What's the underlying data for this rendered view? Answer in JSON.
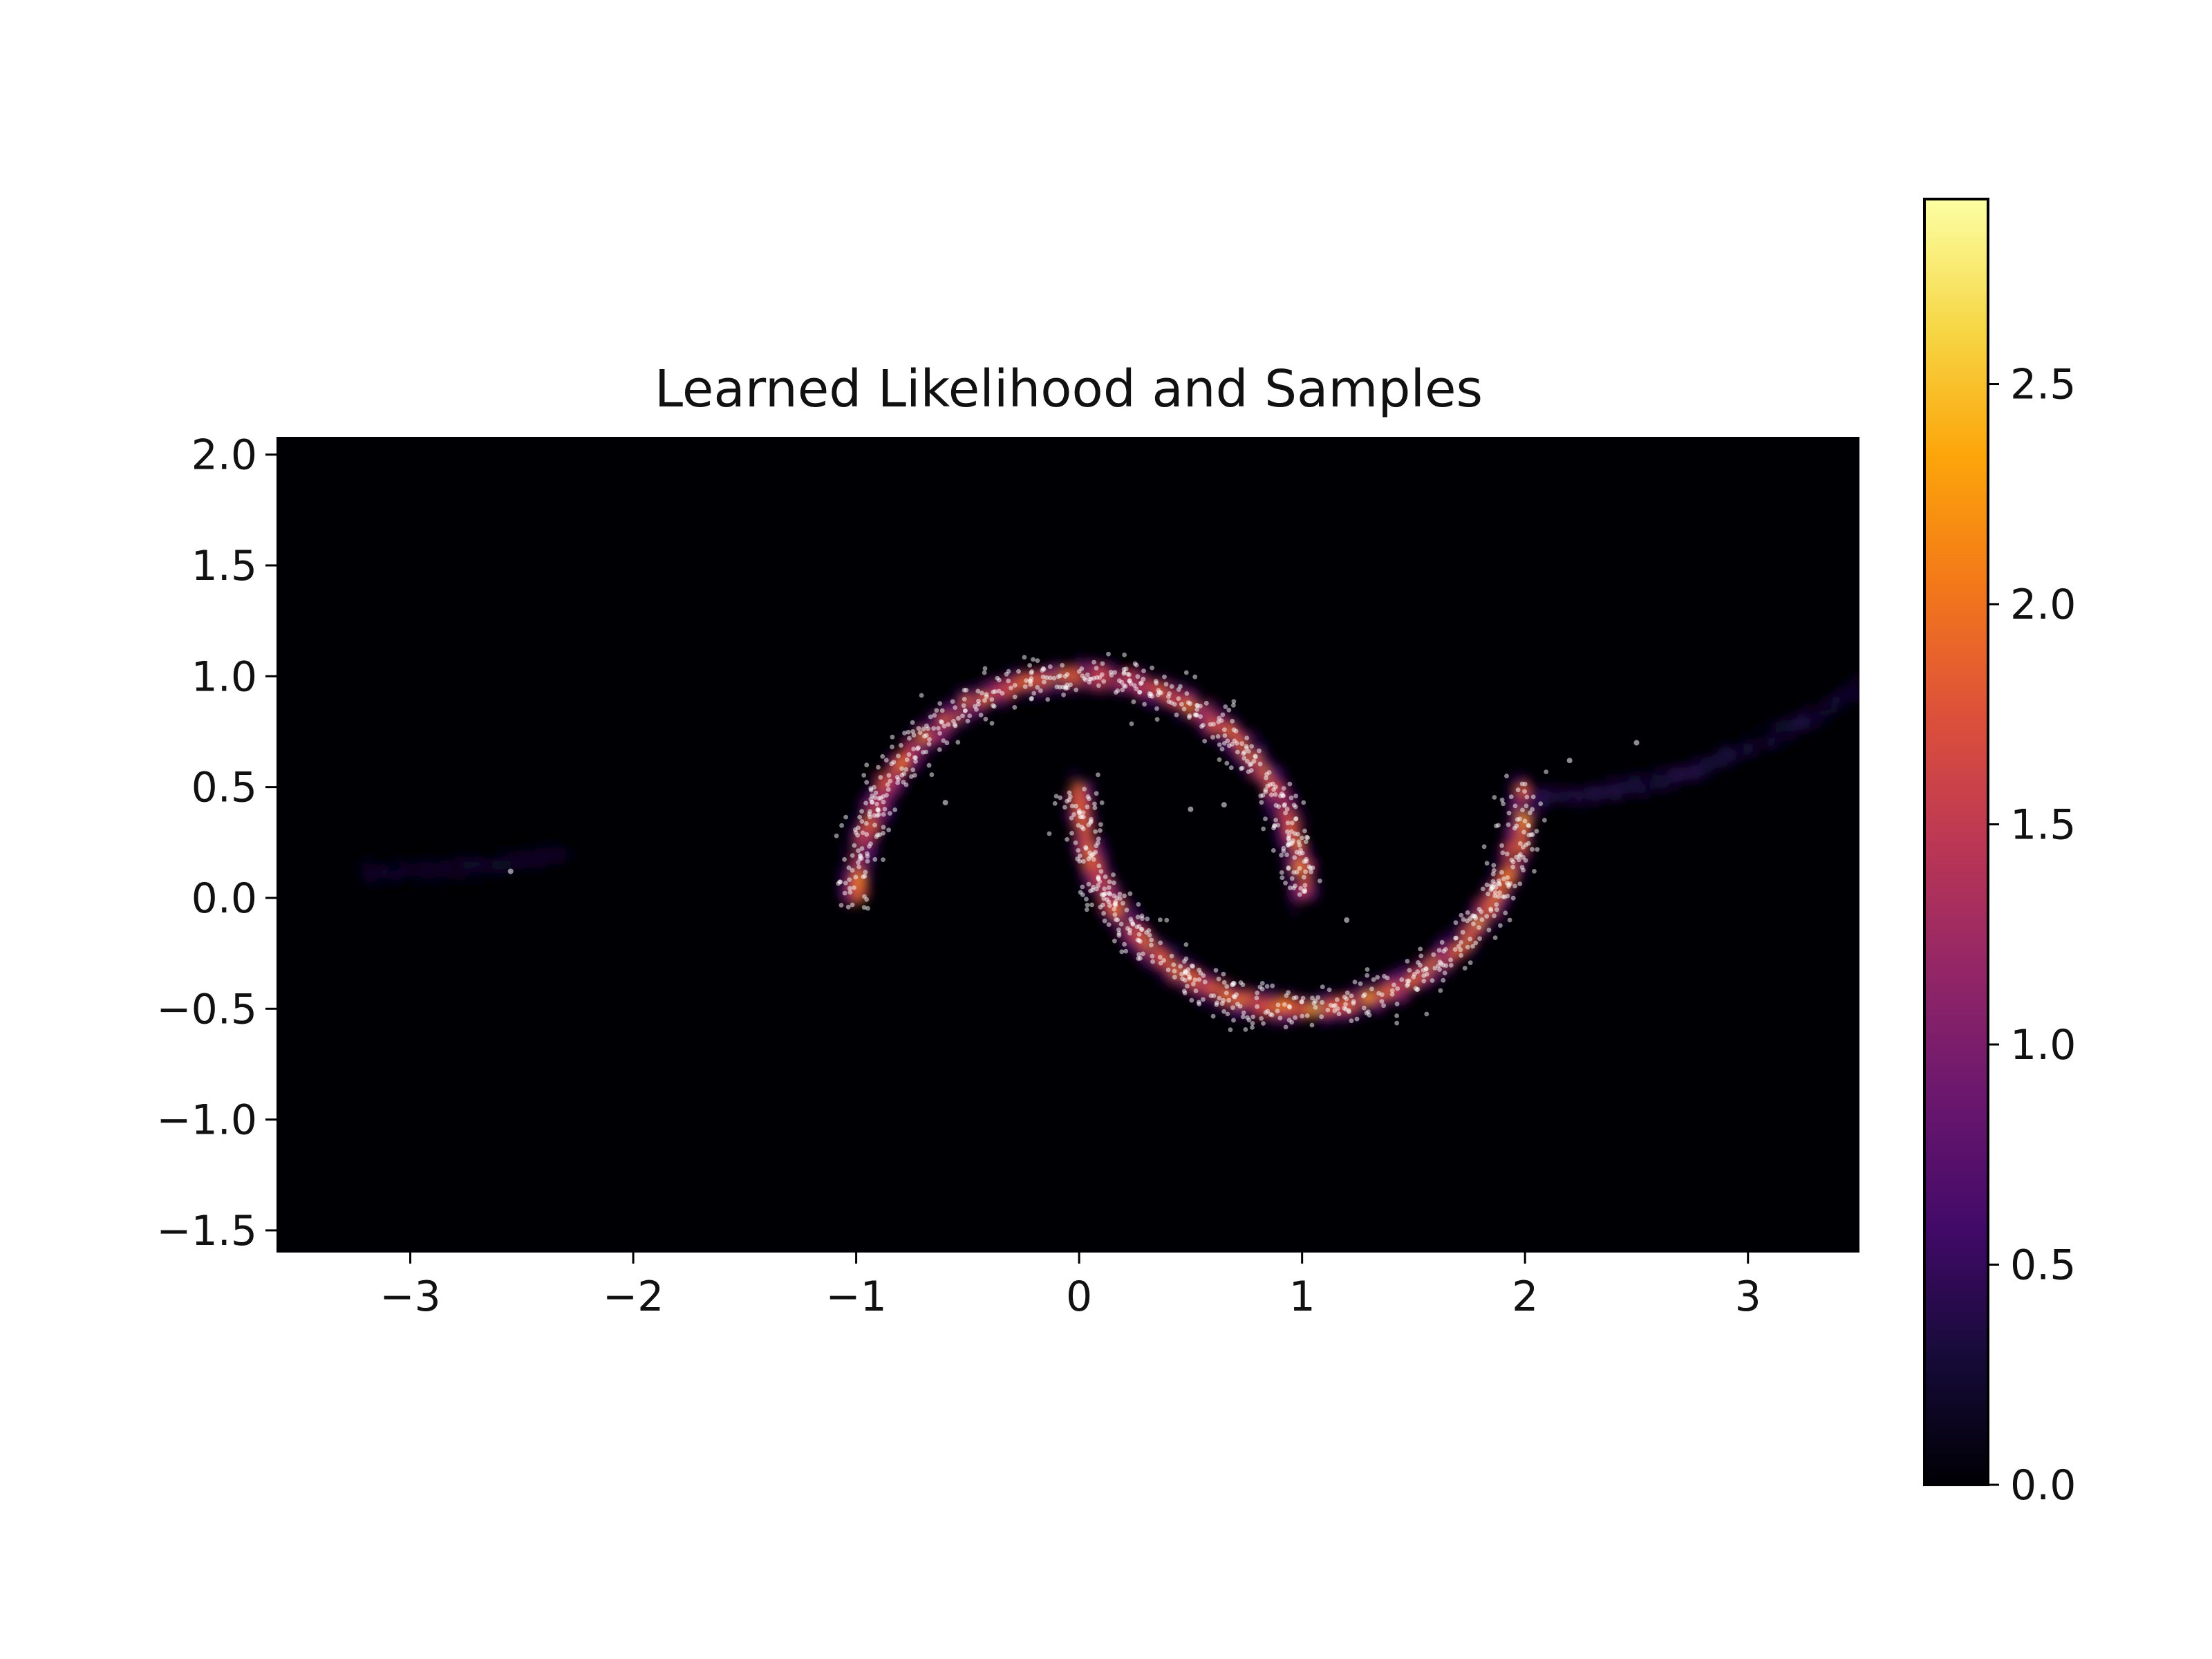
{
  "chart_data": {
    "type": "heatmap",
    "title": "Learned Likelihood and Samples",
    "xlabel": "",
    "ylabel": "",
    "xlim": [
      -3.6,
      3.5
    ],
    "ylim": [
      -1.6,
      2.08
    ],
    "xticks": [
      -3,
      -2,
      -1,
      0,
      1,
      2,
      3
    ],
    "xtick_labels": [
      "−3",
      "−2",
      "−1",
      "0",
      "1",
      "2",
      "3"
    ],
    "yticks": [
      -1.5,
      -1.0,
      -0.5,
      0.0,
      0.5,
      1.0,
      1.5,
      2.0
    ],
    "ytick_labels": [
      "−1.5",
      "−1.0",
      "−0.5",
      "0.0",
      "0.5",
      "1.0",
      "1.5",
      "2.0"
    ],
    "colormap": "inferno",
    "colorbar": {
      "range": [
        0.0,
        2.92
      ],
      "ticks": [
        0.0,
        0.5,
        1.0,
        1.5,
        2.0,
        2.5
      ],
      "tick_labels": [
        "0.0",
        "0.5",
        "1.0",
        "1.5",
        "2.0",
        "2.5"
      ]
    },
    "density_structure": [
      {
        "name": "upper moon",
        "center": [
          0.0,
          0.0
        ],
        "radius": 1.0,
        "angle_range_deg": [
          0,
          180
        ],
        "peak_density": 2.4
      },
      {
        "name": "lower moon",
        "center": [
          1.0,
          0.5
        ],
        "radius": 1.0,
        "angle_range_deg": [
          180,
          360
        ],
        "peak_density": 2.6
      },
      {
        "name": "right tail",
        "from": [
          2.0,
          0.45
        ],
        "to": [
          3.5,
          0.95
        ],
        "peak_density": 0.5
      },
      {
        "name": "left artifact",
        "from": [
          -3.2,
          0.12
        ],
        "to": [
          -2.3,
          0.2
        ],
        "peak_density": 0.3
      }
    ],
    "samples": {
      "color": "#ffffff",
      "approx_count": 1000,
      "noise_sd": 0.05,
      "outliers": [
        [
          -2.55,
          0.12
        ],
        [
          2.5,
          0.7
        ],
        [
          2.2,
          0.62
        ],
        [
          0.5,
          0.4
        ],
        [
          0.65,
          0.42
        ],
        [
          -0.6,
          0.43
        ],
        [
          1.2,
          -0.1
        ]
      ]
    }
  }
}
